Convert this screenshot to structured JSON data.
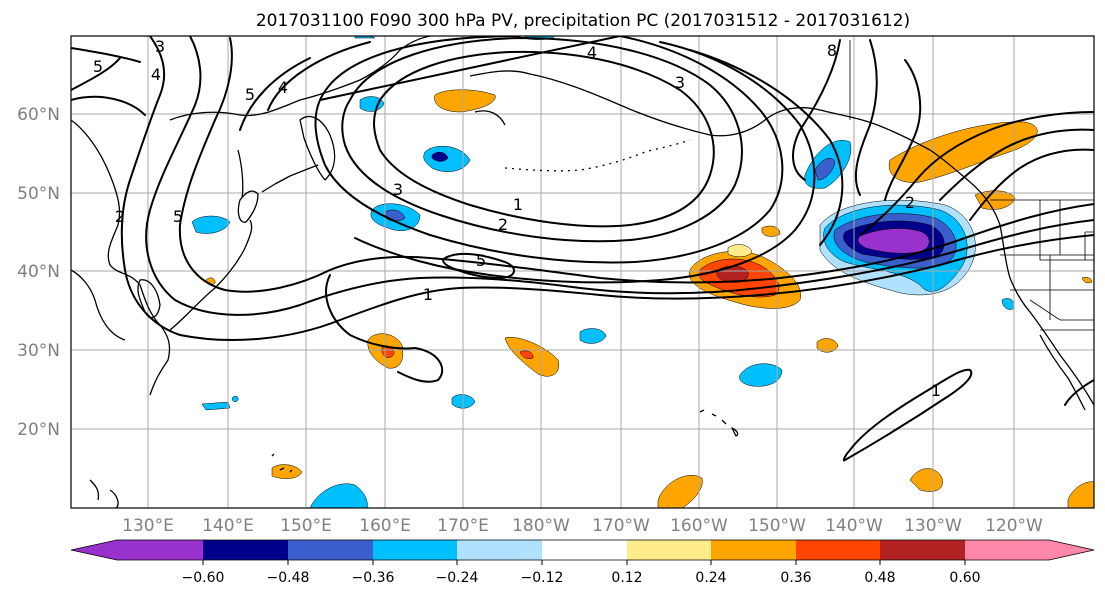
{
  "title": "2017031100 F090 300 hPa PV, precipitation PC (2017031512 - 2017031612)",
  "lat_labels": [
    "60°N",
    "50°N",
    "40°N",
    "30°N",
    "20°N"
  ],
  "lon_labels": [
    "130°E",
    "140°E",
    "150°E",
    "160°E",
    "170°E",
    "180°W",
    "170°W",
    "160°W",
    "150°W",
    "140°W",
    "130°W",
    "120°W"
  ],
  "colorbar": {
    "tick_labels": [
      "−0.60",
      "−0.48",
      "−0.36",
      "−0.24",
      "−0.12",
      "0.12",
      "0.24",
      "0.36",
      "0.48",
      "0.60"
    ],
    "colors": [
      "#9932cc",
      "#00008b",
      "#3a5fcd",
      "#00bfff",
      "#b0e2ff",
      "#ffffff",
      "#ffec8b",
      "#ffa500",
      "#ff4500",
      "#b22222",
      "#ff88aa"
    ]
  },
  "contour_labels": [
    "3",
    "5",
    "4",
    "5",
    "4",
    "3",
    "1",
    "2",
    "5",
    "1",
    "2",
    "5",
    "4",
    "8",
    "2",
    "1",
    "3"
  ]
}
